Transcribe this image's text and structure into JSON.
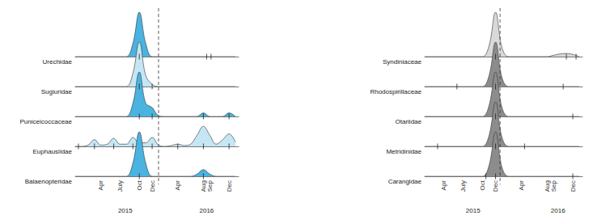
{
  "chart_data": [
    {
      "type": "ridgeline",
      "x": [
        0,
        1,
        2,
        3,
        4,
        5,
        6,
        7,
        8,
        9,
        10,
        11,
        12,
        13,
        14,
        15,
        16,
        17,
        18,
        19,
        20,
        21,
        22,
        23,
        24,
        25
      ],
      "xlim": [
        0,
        25.5
      ],
      "xticks": [
        {
          "value": 4,
          "label": "Apr"
        },
        {
          "value": 7,
          "label": "July"
        },
        {
          "value": 10,
          "label": "Oct"
        },
        {
          "value": 12,
          "label": "Dec"
        },
        {
          "value": 16,
          "label": "Apr"
        },
        {
          "value": 20,
          "label": "Aug"
        },
        {
          "value": 21,
          "label": "Sep"
        },
        {
          "value": 24,
          "label": "Dec"
        }
      ],
      "years": [
        {
          "value": 7.8,
          "label": "2015"
        },
        {
          "value": 20.5,
          "label": "2016"
        }
      ],
      "divider": 13,
      "ylim": [
        0,
        1
      ],
      "tick_labels": "x",
      "series": [
        {
          "name": "Urechidae",
          "color": "#4ab3df",
          "values": [
            0,
            0,
            0,
            0,
            0,
            0,
            0,
            0,
            0,
            0.3,
            1,
            0.3,
            0,
            0,
            0,
            0,
            0,
            0,
            0,
            0,
            0,
            0,
            0,
            0,
            0,
            0
          ],
          "detections": [
            10,
            20.5,
            21.2
          ]
        },
        {
          "name": "Sugiuridae",
          "color": "#c5e6f4",
          "values": [
            0,
            0,
            0,
            0,
            0,
            0,
            0,
            0,
            0,
            0.3,
            1,
            0.25,
            0.05,
            0,
            0,
            0,
            0,
            0,
            0,
            0,
            0,
            0,
            0,
            0,
            0,
            0
          ],
          "detections": [
            10,
            12
          ]
        },
        {
          "name": "Puniceicoccaceae",
          "color": "#4ab3df",
          "values": [
            0,
            0,
            0,
            0,
            0,
            0,
            0,
            0,
            0,
            0.3,
            1,
            0.3,
            0.2,
            0.02,
            0,
            0,
            0,
            0,
            0,
            0,
            0.08,
            0,
            0,
            0,
            0.08,
            0
          ],
          "detections": [
            10,
            12,
            20,
            24
          ]
        },
        {
          "name": "Euphausiidae",
          "color": "#c5e6f4",
          "values": [
            0,
            0,
            0.03,
            0.15,
            0.03,
            0.05,
            0.18,
            0.05,
            0.05,
            0.2,
            0.08,
            0.08,
            0.2,
            0.03,
            0,
            0.02,
            0.05,
            0.02,
            0.05,
            0.25,
            0.45,
            0.25,
            0.05,
            0.15,
            0.28,
            0.1
          ],
          "detections": [
            0.5,
            3,
            6,
            9,
            12,
            16,
            20,
            24
          ]
        },
        {
          "name": "Balaenopteridae",
          "color": "#4ab3df",
          "values": [
            0,
            0,
            0,
            0,
            0,
            0,
            0,
            0,
            0,
            0.3,
            1,
            0.3,
            0,
            0,
            0,
            0,
            0,
            0,
            0,
            0.05,
            0.15,
            0.05,
            0,
            0,
            0,
            0
          ],
          "detections": [
            10,
            20
          ]
        }
      ]
    },
    {
      "type": "ridgeline",
      "x": [
        1,
        2,
        3,
        4,
        5,
        6,
        7,
        8,
        9,
        10,
        11,
        12,
        13,
        14,
        15,
        16,
        17,
        18,
        19,
        20,
        21,
        22,
        23,
        24,
        25
      ],
      "xlim": [
        1,
        25.5
      ],
      "xticks": [
        {
          "value": 4,
          "label": "Apr"
        },
        {
          "value": 7,
          "label": "July"
        },
        {
          "value": 10,
          "label": "Oct"
        },
        {
          "value": 12,
          "label": "Dec"
        },
        {
          "value": 16,
          "label": "Apr"
        },
        {
          "value": 20,
          "label": "Aug"
        },
        {
          "value": 21,
          "label": "Sep"
        },
        {
          "value": 24,
          "label": "Dec"
        }
      ],
      "years": [
        {
          "value": 8.5,
          "label": "2015"
        },
        {
          "value": 21.7,
          "label": "2016"
        }
      ],
      "divider": 12.7,
      "ylim": [
        0,
        1
      ],
      "tick_labels": "x",
      "series": [
        {
          "name": "Syndiniaceae",
          "color": "#d9d9d9",
          "values": [
            0,
            0,
            0,
            0,
            0,
            0,
            0,
            0,
            0,
            0,
            0.25,
            1,
            0.2,
            0,
            0,
            0,
            0,
            0,
            0,
            0,
            0.03,
            0.06,
            0.07,
            0.05,
            0
          ],
          "detections": [
            12,
            23,
            24.5
          ]
        },
        {
          "name": "Rhodospirillaceae",
          "color": "#8c8c8c",
          "values": [
            0,
            0,
            0,
            0,
            0,
            0,
            0,
            0,
            0,
            0,
            0.25,
            1,
            0.2,
            0,
            0,
            0,
            0,
            0,
            0,
            0,
            0,
            0,
            0,
            0,
            0
          ],
          "detections": [
            6,
            12,
            22.5
          ]
        },
        {
          "name": "Otariidae",
          "color": "#8c8c8c",
          "values": [
            0,
            0,
            0,
            0,
            0,
            0,
            0,
            0,
            0,
            0,
            0.25,
            1,
            0.2,
            0,
            0,
            0,
            0,
            0,
            0,
            0,
            0,
            0,
            0,
            0,
            0
          ],
          "detections": [
            12,
            24
          ]
        },
        {
          "name": "Metridinidae",
          "color": "#8c8c8c",
          "values": [
            0,
            0,
            0,
            0,
            0,
            0,
            0,
            0,
            0,
            0,
            0.25,
            1,
            0.2,
            0,
            0,
            0,
            0,
            0,
            0,
            0,
            0,
            0,
            0,
            0,
            0
          ],
          "detections": [
            3,
            12,
            16.5
          ]
        },
        {
          "name": "Carangidae",
          "color": "#8c8c8c",
          "values": [
            0,
            0,
            0,
            0,
            0,
            0,
            0,
            0,
            0,
            0,
            0.25,
            1,
            0.2,
            0,
            0,
            0,
            0,
            0,
            0,
            0,
            0,
            0,
            0,
            0,
            0
          ],
          "detections": [
            10.5,
            12,
            24
          ]
        }
      ]
    }
  ]
}
